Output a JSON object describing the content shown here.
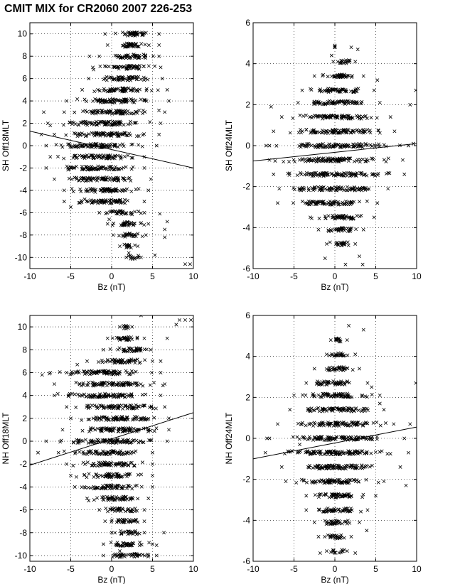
{
  "figure": {
    "title": "CMIT MIX for CR2060 2007 226-253"
  },
  "chart_data": [
    {
      "type": "scatter",
      "xlabel": "Bz (nT)",
      "ylabel": "SH Off18MLT",
      "xlim": [
        -10,
        10
      ],
      "ylim": [
        -11,
        11
      ],
      "xticks": [
        -10,
        -5,
        0,
        5,
        10
      ],
      "yticks": [
        -10,
        -8,
        -6,
        -4,
        -2,
        0,
        2,
        4,
        6,
        8,
        10
      ],
      "grid": true,
      "marker": "x",
      "marker_color": "#000000",
      "fit_line": {
        "x": [
          -10,
          10
        ],
        "y": [
          1.3,
          -2.0
        ]
      },
      "bands": [
        {
          "y": 10,
          "x": [
            -0.8,
            5.8
          ]
        },
        {
          "y": 9,
          "x": [
            -0.5,
            5.8
          ]
        },
        {
          "y": 8,
          "x": [
            -1.5,
            5.8
          ]
        },
        {
          "y": 7,
          "x": [
            -2.3,
            6.0
          ]
        },
        {
          "y": 6,
          "x": [
            -2.8,
            6.2
          ]
        },
        {
          "y": 5,
          "x": [
            -3.6,
            6.8
          ]
        },
        {
          "y": 4,
          "x": [
            -5.5,
            7.0
          ]
        },
        {
          "y": 3,
          "x": [
            -5.8,
            6.5
          ]
        },
        {
          "y": 2,
          "x": [
            -7.8,
            6.0
          ]
        },
        {
          "y": 1,
          "x": [
            -7.0,
            5.8
          ]
        },
        {
          "y": 0,
          "x": [
            -8.0,
            5.5
          ]
        },
        {
          "y": -1,
          "x": [
            -7.5,
            4.0
          ]
        },
        {
          "y": -2,
          "x": [
            -8.0,
            4.0
          ]
        },
        {
          "y": -3,
          "x": [
            -7.0,
            4.8
          ]
        },
        {
          "y": -4,
          "x": [
            -5.8,
            4.5
          ]
        },
        {
          "y": -5,
          "x": [
            -5.8,
            4.0
          ]
        },
        {
          "y": -6,
          "x": [
            -1.5,
            4.0
          ]
        },
        {
          "y": -7,
          "x": [
            -0.5,
            4.5
          ]
        },
        {
          "y": -8,
          "x": [
            0.2,
            4.2
          ]
        },
        {
          "y": -9,
          "x": [
            1.0,
            3.2
          ]
        },
        {
          "y": -10,
          "x": [
            1.8,
            3.6
          ]
        }
      ],
      "outliers": [
        [
          -1.4,
          7.1
        ],
        [
          -2.7,
          8.0
        ],
        [
          -2.2,
          6.8
        ],
        [
          -7.5,
          1.8
        ],
        [
          -8.3,
          3.0
        ],
        [
          9.0,
          -10.6
        ],
        [
          9.6,
          -10.6
        ],
        [
          6.8,
          -6.8
        ],
        [
          6.5,
          -7.5
        ],
        [
          5.9,
          -6.1
        ],
        [
          -0.3,
          -6.6
        ],
        [
          6.5,
          -8.2
        ],
        [
          5.3,
          -9.8
        ],
        [
          -5.0,
          -5.5
        ],
        [
          2.1,
          -9.6
        ],
        [
          4.2,
          10.1
        ],
        [
          -3.3,
          -4.8
        ],
        [
          -8.6,
          1.0
        ]
      ]
    },
    {
      "type": "scatter",
      "xlabel": "Bz (nT)",
      "ylabel": "SH Off24MLT",
      "xlim": [
        -10,
        10
      ],
      "ylim": [
        -6,
        6
      ],
      "xticks": [
        -10,
        -5,
        0,
        5,
        10
      ],
      "yticks": [
        -6,
        -4,
        -2,
        0,
        2,
        4,
        6
      ],
      "grid": true,
      "marker": "x",
      "marker_color": "#000000",
      "fit_line": {
        "x": [
          -10,
          10
        ],
        "y": [
          -0.75,
          0.1
        ]
      },
      "bands": [
        {
          "y": 4.8,
          "x": [
            0.0,
            0.0
          ]
        },
        {
          "y": 4.1,
          "x": [
            -0.2,
            2.5
          ]
        },
        {
          "y": 3.4,
          "x": [
            -2.5,
            3.5
          ]
        },
        {
          "y": 2.7,
          "x": [
            -4.0,
            4.8
          ]
        },
        {
          "y": 2.1,
          "x": [
            -4.5,
            5.5
          ]
        },
        {
          "y": 1.4,
          "x": [
            -6.5,
            6.8
          ]
        },
        {
          "y": 0.7,
          "x": [
            -7.5,
            7.3
          ]
        },
        {
          "y": 0.0,
          "x": [
            -8.0,
            9.0
          ]
        },
        {
          "y": -0.7,
          "x": [
            -8.0,
            8.3
          ]
        },
        {
          "y": -1.4,
          "x": [
            -7.5,
            8.5
          ]
        },
        {
          "y": -2.1,
          "x": [
            -6.8,
            6.5
          ]
        },
        {
          "y": -2.8,
          "x": [
            -7.0,
            5.2
          ]
        },
        {
          "y": -3.5,
          "x": [
            -3.0,
            4.8
          ]
        },
        {
          "y": -4.1,
          "x": [
            -2.0,
            3.5
          ]
        },
        {
          "y": -4.8,
          "x": [
            -1.0,
            2.5
          ]
        }
      ],
      "outliers": [
        [
          2.0,
          4.8
        ],
        [
          9.9,
          2.7
        ],
        [
          9.6,
          0.1
        ],
        [
          9.2,
          2.0
        ],
        [
          -1.2,
          -5.5
        ],
        [
          3.0,
          -5.4
        ],
        [
          3.4,
          -5.8
        ],
        [
          -0.4,
          4.4
        ],
        [
          5.2,
          3.2
        ],
        [
          -7.8,
          1.9
        ],
        [
          2.8,
          4.7
        ],
        [
          -8.4,
          0.0
        ],
        [
          1.3,
          -5.8
        ]
      ]
    },
    {
      "type": "scatter",
      "xlabel": "Bz (nT)",
      "ylabel": "NH Off18MLT",
      "xlim": [
        -10,
        10
      ],
      "ylim": [
        -10.5,
        11
      ],
      "xticks": [
        -10,
        -5,
        0,
        5,
        10
      ],
      "yticks": [
        -10,
        -8,
        -6,
        -4,
        -2,
        0,
        2,
        4,
        6,
        8,
        10
      ],
      "grid": true,
      "marker": "x",
      "marker_color": "#000000",
      "fit_line": {
        "x": [
          -10,
          10
        ],
        "y": [
          -2.1,
          2.5
        ]
      },
      "bands": [
        {
          "y": 10,
          "x": [
            1.0,
            2.5
          ]
        },
        {
          "y": 9,
          "x": [
            -0.5,
            4.0
          ]
        },
        {
          "y": 8,
          "x": [
            -1.0,
            4.8
          ]
        },
        {
          "y": 7,
          "x": [
            -3.0,
            5.0
          ]
        },
        {
          "y": 6,
          "x": [
            -7.5,
            6.0
          ]
        },
        {
          "y": 5,
          "x": [
            -7.0,
            6.5
          ]
        },
        {
          "y": 4,
          "x": [
            -7.0,
            6.0
          ]
        },
        {
          "y": 3,
          "x": [
            -5.5,
            6.5
          ]
        },
        {
          "y": 2,
          "x": [
            -5.0,
            7.0
          ]
        },
        {
          "y": 1,
          "x": [
            -6.0,
            7.0
          ]
        },
        {
          "y": 0,
          "x": [
            -8.0,
            6.8
          ]
        },
        {
          "y": -1,
          "x": [
            -6.5,
            5.0
          ]
        },
        {
          "y": -2,
          "x": [
            -5.5,
            5.0
          ]
        },
        {
          "y": -3,
          "x": [
            -5.0,
            5.0
          ]
        },
        {
          "y": -4,
          "x": [
            -4.5,
            5.0
          ]
        },
        {
          "y": -5,
          "x": [
            -3.0,
            4.5
          ]
        },
        {
          "y": -6,
          "x": [
            -1.5,
            4.0
          ]
        },
        {
          "y": -7,
          "x": [
            -0.8,
            4.0
          ]
        },
        {
          "y": -8,
          "x": [
            0.0,
            4.0
          ]
        },
        {
          "y": -9,
          "x": [
            -1.0,
            5.0
          ]
        },
        {
          "y": -10,
          "x": [
            -1.0,
            5.5
          ]
        }
      ],
      "outliers": [
        [
          9.0,
          10.6
        ],
        [
          9.7,
          10.6
        ],
        [
          8.3,
          10.6
        ],
        [
          7.9,
          10.2
        ],
        [
          -8.5,
          5.8
        ],
        [
          -7.6,
          5.9
        ],
        [
          -9.0,
          -1.0
        ],
        [
          -2.8,
          -5.2
        ],
        [
          1.0,
          -9.6
        ],
        [
          5.5,
          -9.1
        ],
        [
          6.4,
          -8.0
        ],
        [
          6.0,
          7.0
        ],
        [
          6.8,
          9.0
        ],
        [
          3.6,
          11.0
        ],
        [
          -4.2,
          6.7
        ]
      ]
    },
    {
      "type": "scatter",
      "xlabel": "Bz (nT)",
      "ylabel": "NH Off24MLT",
      "xlim": [
        -10,
        10
      ],
      "ylim": [
        -6,
        6
      ],
      "xticks": [
        -10,
        -5,
        0,
        5,
        10
      ],
      "yticks": [
        -6,
        -4,
        -2,
        0,
        2,
        4,
        6
      ],
      "grid": true,
      "marker": "x",
      "marker_color": "#000000",
      "fit_line": {
        "x": [
          -10,
          10
        ],
        "y": [
          -1.0,
          0.55
        ]
      },
      "bands": [
        {
          "y": 4.8,
          "x": [
            -0.5,
            1.5
          ]
        },
        {
          "y": 4.1,
          "x": [
            -1.0,
            2.5
          ]
        },
        {
          "y": 3.4,
          "x": [
            -2.5,
            3.0
          ]
        },
        {
          "y": 2.7,
          "x": [
            -3.5,
            4.0
          ]
        },
        {
          "y": 2.1,
          "x": [
            -5.0,
            5.5
          ]
        },
        {
          "y": 1.4,
          "x": [
            -5.5,
            6.0
          ]
        },
        {
          "y": 0.7,
          "x": [
            -7.0,
            7.2
          ]
        },
        {
          "y": 0.0,
          "x": [
            -8.0,
            8.5
          ]
        },
        {
          "y": -0.7,
          "x": [
            -8.5,
            9.0
          ]
        },
        {
          "y": -1.4,
          "x": [
            -6.5,
            8.0
          ]
        },
        {
          "y": -2.1,
          "x": [
            -6.0,
            6.0
          ]
        },
        {
          "y": -2.8,
          "x": [
            -3.5,
            5.0
          ]
        },
        {
          "y": -3.5,
          "x": [
            -3.5,
            4.0
          ]
        },
        {
          "y": -4.1,
          "x": [
            -2.5,
            3.0
          ]
        },
        {
          "y": -4.8,
          "x": [
            -2.0,
            2.0
          ]
        },
        {
          "y": -5.5,
          "x": [
            -1.0,
            1.5
          ]
        }
      ],
      "outliers": [
        [
          1.7,
          5.5
        ],
        [
          9.9,
          2.7
        ],
        [
          9.2,
          0.7
        ],
        [
          8.7,
          -2.3
        ],
        [
          -8.3,
          0.0
        ],
        [
          3.9,
          -4.5
        ],
        [
          2.5,
          -5.6
        ],
        [
          -1.8,
          -5.6
        ],
        [
          4.5,
          2.5
        ],
        [
          -4.3,
          -0.3
        ],
        [
          5.5,
          1.7
        ],
        [
          3.5,
          5.3
        ]
      ]
    }
  ]
}
